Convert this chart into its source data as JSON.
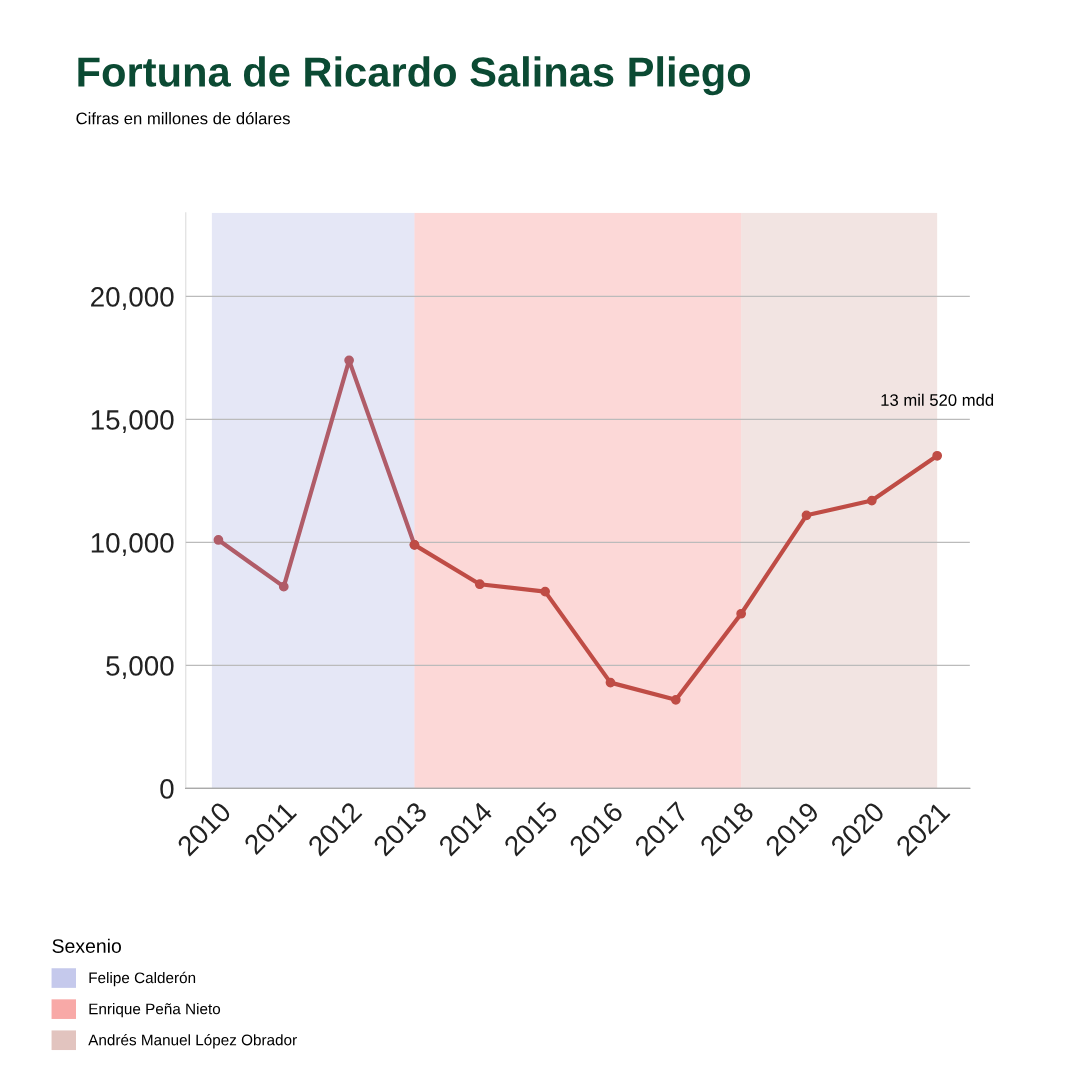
{
  "chart_data": {
    "type": "line",
    "title": "Fortuna de Ricardo Salinas Pliego",
    "subtitle": "Cifras en millones de dólares",
    "series": [
      {
        "color": "#b05c68",
        "x": [
          2010,
          2011,
          2012,
          2013
        ],
        "values": [
          10100,
          8200,
          17400,
          9900
        ]
      },
      {
        "color": "#bf4c45",
        "x": [
          2013,
          2014,
          2015,
          2016,
          2017,
          2018,
          2019,
          2020,
          2021
        ],
        "values": [
          9900,
          8300,
          8000,
          4300,
          3600,
          7100,
          11100,
          11700,
          13520
        ]
      }
    ],
    "xlim": [
      2009.5,
      2021.5
    ],
    "xticks": [
      2010,
      2011,
      2012,
      2013,
      2014,
      2015,
      2016,
      2017,
      2018,
      2019,
      2020,
      2021
    ],
    "ylim": [
      0,
      23400
    ],
    "yticks": [
      {
        "value": 0,
        "label": "0"
      },
      {
        "value": 5000,
        "label": "5,000"
      },
      {
        "value": 10000,
        "label": "10,000"
      },
      {
        "value": 15000,
        "label": "15,000"
      },
      {
        "value": 20000,
        "label": "20,000"
      }
    ],
    "bands": [
      {
        "axis": "x",
        "from": 2009.9,
        "to": 2013,
        "label": "Felipe Calderón",
        "color": "#c5c9ec"
      },
      {
        "axis": "x",
        "from": 2013,
        "to": 2018,
        "label": "Enrique Peña Nieto",
        "color": "#f8a9a7"
      },
      {
        "axis": "x",
        "from": 2018,
        "to": 2021,
        "label": "Andrés Manuel López Obrador",
        "color": "#e2c4bf"
      }
    ],
    "legend_title": "Sexenio",
    "legend": "bottom left",
    "annotations": [
      {
        "text": "13 mil 520 mdd",
        "x": 2021,
        "y": 13520
      }
    ],
    "grid": "y",
    "marker": "circle",
    "line_style": "solid"
  }
}
